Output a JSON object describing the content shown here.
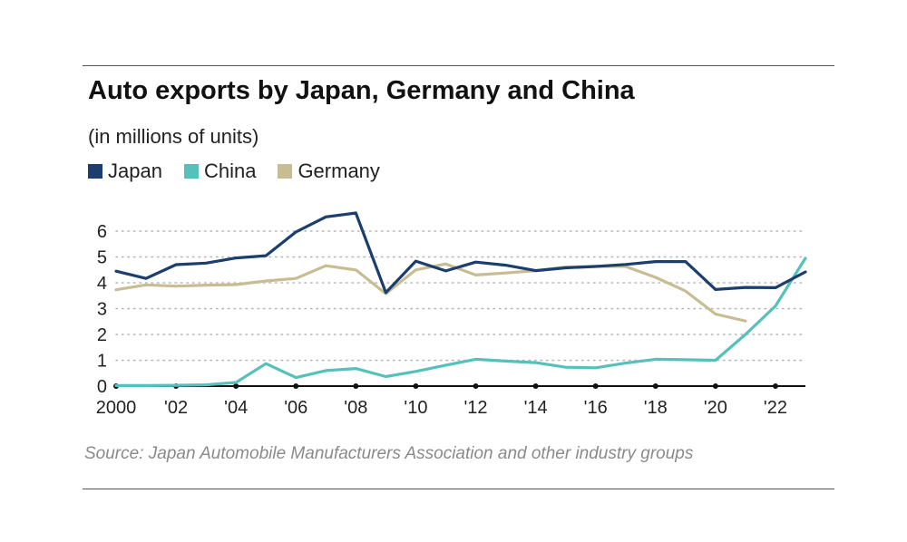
{
  "header": {
    "title": "Auto exports by Japan, Germany and China",
    "subtitle": "(in millions of units)"
  },
  "legend": [
    {
      "label": "Japan",
      "color": "#1b3e6e"
    },
    {
      "label": "China",
      "color": "#56c0ba"
    },
    {
      "label": "Germany",
      "color": "#c8bd92"
    }
  ],
  "footer": {
    "source": "Source: Japan Automobile Manufacturers Association and other industry groups"
  },
  "chart_data": {
    "type": "line",
    "title": "Auto exports by Japan, Germany and China",
    "subtitle": "(in millions of units)",
    "xlabel": "",
    "ylabel": "",
    "xlim": [
      2000,
      2023
    ],
    "ylim": [
      0,
      6.6
    ],
    "grid": "horizontal dotted",
    "legend_position": "top-left",
    "y_ticks": [
      0,
      1,
      2,
      3,
      4,
      5,
      6
    ],
    "x_ticks": [
      {
        "value": 2000,
        "label": "2000"
      },
      {
        "value": 2002,
        "label": "'02"
      },
      {
        "value": 2004,
        "label": "'04"
      },
      {
        "value": 2006,
        "label": "'06"
      },
      {
        "value": 2008,
        "label": "'08"
      },
      {
        "value": 2010,
        "label": "'10"
      },
      {
        "value": 2012,
        "label": "'12"
      },
      {
        "value": 2014,
        "label": "'14"
      },
      {
        "value": 2016,
        "label": "'16"
      },
      {
        "value": 2018,
        "label": "'18"
      },
      {
        "value": 2020,
        "label": "'20"
      },
      {
        "value": 2022,
        "label": "'22"
      }
    ],
    "series": [
      {
        "name": "Japan",
        "color": "#1b3e6e",
        "points": [
          [
            2000,
            4.45
          ],
          [
            2001,
            4.17
          ],
          [
            2002,
            4.7
          ],
          [
            2003,
            4.76
          ],
          [
            2004,
            4.96
          ],
          [
            2005,
            5.05
          ],
          [
            2006,
            5.97
          ],
          [
            2007,
            6.55
          ],
          [
            2008,
            6.7
          ],
          [
            2009,
            3.62
          ],
          [
            2010,
            4.84
          ],
          [
            2011,
            4.46
          ],
          [
            2012,
            4.8
          ],
          [
            2013,
            4.68
          ],
          [
            2014,
            4.47
          ],
          [
            2015,
            4.58
          ],
          [
            2016,
            4.63
          ],
          [
            2017,
            4.71
          ],
          [
            2018,
            4.82
          ],
          [
            2019,
            4.82
          ],
          [
            2020,
            3.74
          ],
          [
            2021,
            3.82
          ],
          [
            2022,
            3.81
          ],
          [
            2023,
            4.42
          ]
        ]
      },
      {
        "name": "China",
        "color": "#56c0ba",
        "points": [
          [
            2000,
            0.02
          ],
          [
            2001,
            0.02
          ],
          [
            2002,
            0.03
          ],
          [
            2003,
            0.05
          ],
          [
            2004,
            0.14
          ],
          [
            2005,
            0.87
          ],
          [
            2006,
            0.33
          ],
          [
            2007,
            0.6
          ],
          [
            2008,
            0.68
          ],
          [
            2009,
            0.37
          ],
          [
            2010,
            0.57
          ],
          [
            2011,
            0.81
          ],
          [
            2012,
            1.04
          ],
          [
            2013,
            0.97
          ],
          [
            2014,
            0.91
          ],
          [
            2015,
            0.73
          ],
          [
            2016,
            0.71
          ],
          [
            2017,
            0.89
          ],
          [
            2018,
            1.04
          ],
          [
            2019,
            1.02
          ],
          [
            2020,
            1.0
          ],
          [
            2021,
            2.0
          ],
          [
            2022,
            3.1
          ],
          [
            2023,
            4.95
          ]
        ]
      },
      {
        "name": "Germany",
        "color": "#c8bd92",
        "points": [
          [
            2000,
            3.73
          ],
          [
            2001,
            3.92
          ],
          [
            2002,
            3.87
          ],
          [
            2003,
            3.91
          ],
          [
            2004,
            3.93
          ],
          [
            2005,
            4.07
          ],
          [
            2006,
            4.17
          ],
          [
            2007,
            4.66
          ],
          [
            2008,
            4.5
          ],
          [
            2009,
            3.58
          ],
          [
            2010,
            4.5
          ],
          [
            2011,
            4.73
          ],
          [
            2012,
            4.3
          ],
          [
            2013,
            4.38
          ],
          [
            2014,
            4.47
          ],
          [
            2015,
            4.61
          ],
          [
            2016,
            4.64
          ],
          [
            2017,
            4.63
          ],
          [
            2018,
            4.21
          ],
          [
            2019,
            3.68
          ],
          [
            2020,
            2.79
          ],
          [
            2021,
            2.52
          ]
        ]
      }
    ]
  }
}
